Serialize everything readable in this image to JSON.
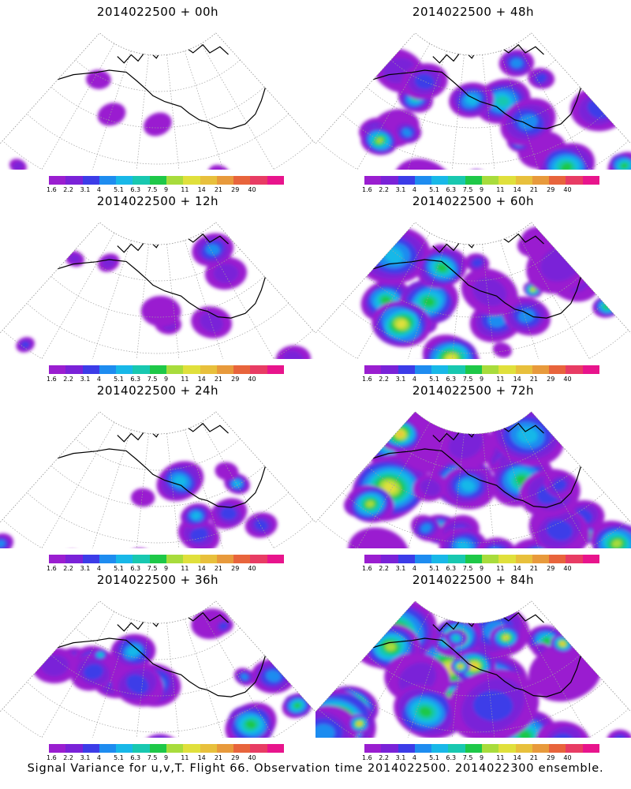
{
  "panels": [
    {
      "title": "2014022500 + 00h",
      "lead": 0
    },
    {
      "title": "2014022500 + 48h",
      "lead": 48
    },
    {
      "title": "2014022500 + 12h",
      "lead": 12
    },
    {
      "title": "2014022500 + 60h",
      "lead": 60
    },
    {
      "title": "2014022500 + 24h",
      "lead": 24
    },
    {
      "title": "2014022500 + 72h",
      "lead": 72
    },
    {
      "title": "2014022500 + 36h",
      "lead": 36
    },
    {
      "title": "2014022500 + 84h",
      "lead": 84
    }
  ],
  "colorbar": {
    "labels": [
      "1.6",
      "2.2",
      "3.1",
      "4",
      "5.1",
      "6.3",
      "7.5",
      "9",
      "11",
      "14",
      "21",
      "29",
      "40"
    ],
    "colors": [
      "#9a1ed0",
      "#7a22d8",
      "#3c3ce8",
      "#1e8cf0",
      "#18b8e8",
      "#18c8b0",
      "#1ec848",
      "#a8dc3c",
      "#e0e03c",
      "#e8c03c",
      "#e89a3c",
      "#e8643c",
      "#e83c64",
      "#e8148c"
    ]
  },
  "footer": "Signal Variance for u,v,T. Flight 66. Observation time 2014022500. 2014022300 ensemble."
}
